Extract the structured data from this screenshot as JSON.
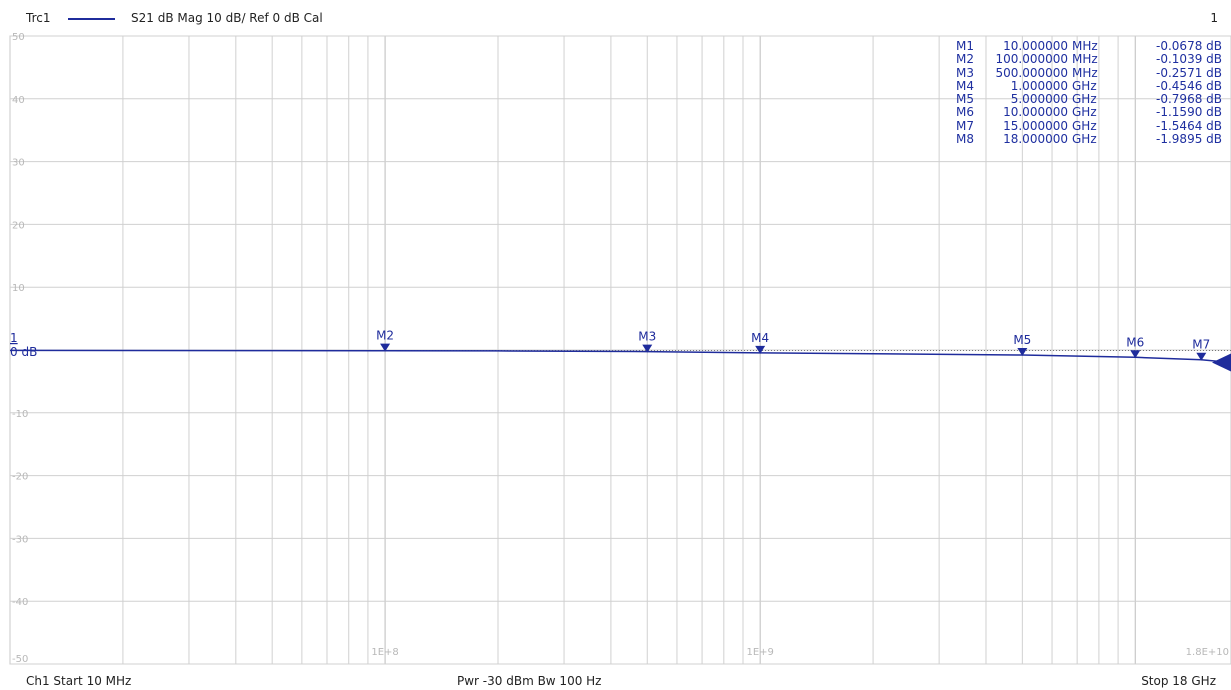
{
  "header": {
    "trace_name": "Trc1",
    "trace_desc": "S21  dB Mag  10 dB/ Ref 0 dB  Cal",
    "channel_number": "1",
    "trace_color": "#1f2c9c"
  },
  "footer": {
    "start": "Ch1  Start  10 MHz",
    "power_bw": "Pwr  -30 dBm  Bw  100 Hz",
    "stop": "Stop  18 GHz"
  },
  "ref_label": "0 dB",
  "trace_tag": "1",
  "x_labels": [
    "1E+8",
    "1E+9",
    "1.8E+10"
  ],
  "markers": [
    {
      "name": "M1",
      "freq": "10.000000",
      "unit": "MHz",
      "value": "-0.0678 dB"
    },
    {
      "name": "M2",
      "freq": "100.000000",
      "unit": "MHz",
      "value": "-0.1039 dB"
    },
    {
      "name": "M3",
      "freq": "500.000000",
      "unit": "MHz",
      "value": "-0.2571 dB"
    },
    {
      "name": "M4",
      "freq": "1.000000",
      "unit": "GHz",
      "value": "-0.4546 dB"
    },
    {
      "name": "M5",
      "freq": "5.000000",
      "unit": "GHz",
      "value": "-0.7968 dB"
    },
    {
      "name": "M6",
      "freq": "10.000000",
      "unit": "GHz",
      "value": "-1.1590 dB"
    },
    {
      "name": "M7",
      "freq": "15.000000",
      "unit": "GHz",
      "value": "-1.5464 dB"
    },
    {
      "name": "M8",
      "freq": "18.000000",
      "unit": "GHz",
      "value": "-1.9895 dB"
    }
  ],
  "chart_data": {
    "type": "line",
    "x_scale": "log",
    "xlim": [
      10000000,
      18000000000
    ],
    "ylim": [
      -50,
      50
    ],
    "yticks": [
      50,
      40,
      30,
      20,
      10,
      -10,
      -20,
      -30,
      -40,
      -50
    ],
    "grid": true,
    "xlabel": "",
    "ylabel": "",
    "series": [
      {
        "name": "S21",
        "color": "#1f2c9c",
        "x": [
          10000000,
          20000000,
          50000000,
          100000000,
          200000000,
          500000000,
          1000000000,
          2000000000,
          5000000000,
          10000000000,
          15000000000,
          18000000000
        ],
        "y": [
          -0.0678,
          -0.08,
          -0.09,
          -0.1039,
          -0.15,
          -0.2571,
          -0.4546,
          -0.6,
          -0.7968,
          -1.159,
          -1.5464,
          -1.9895
        ]
      }
    ],
    "markers": [
      {
        "name": "M1",
        "x": 10000000,
        "y": -0.0678
      },
      {
        "name": "M2",
        "x": 100000000,
        "y": -0.1039
      },
      {
        "name": "M3",
        "x": 500000000,
        "y": -0.2571
      },
      {
        "name": "M4",
        "x": 1000000000,
        "y": -0.4546
      },
      {
        "name": "M5",
        "x": 5000000000,
        "y": -0.7968
      },
      {
        "name": "M6",
        "x": 10000000000,
        "y": -1.159
      },
      {
        "name": "M7",
        "x": 15000000000,
        "y": -1.5464
      },
      {
        "name": "M8",
        "x": 18000000000,
        "y": -1.9895
      }
    ]
  }
}
